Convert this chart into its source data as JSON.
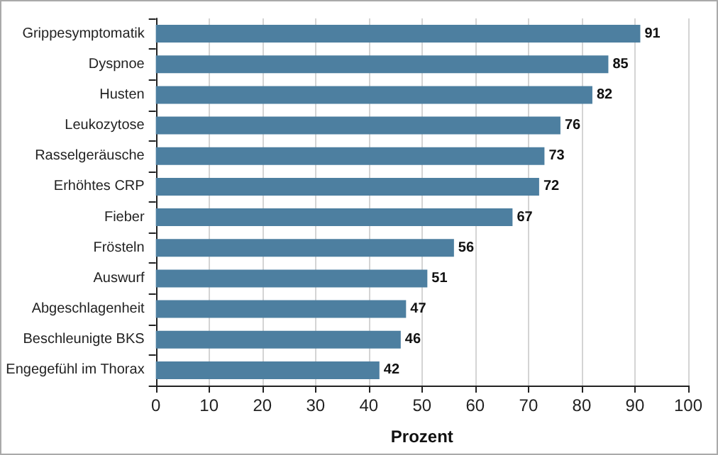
{
  "chart_data": {
    "type": "bar",
    "orientation": "horizontal",
    "xlabel": "Prozent",
    "categories": [
      "Grippesymptomatik",
      "Dyspnoe",
      "Husten",
      "Leukozytose",
      "Rasselgeräusche",
      "Erhöhtes CRP",
      "Fieber",
      "Frösteln",
      "Auswurf",
      "Abgeschlagenheit",
      "Beschleunigte BKS",
      "Engegefühl im Thorax"
    ],
    "values": [
      91,
      85,
      82,
      76,
      73,
      72,
      67,
      56,
      51,
      47,
      46,
      42
    ],
    "color": "#4d7fa0",
    "xlim": [
      0,
      100
    ],
    "xticks": [
      0,
      10,
      20,
      30,
      40,
      50,
      60,
      70,
      80,
      90,
      100
    ],
    "grid": "x",
    "data_labels": true
  }
}
